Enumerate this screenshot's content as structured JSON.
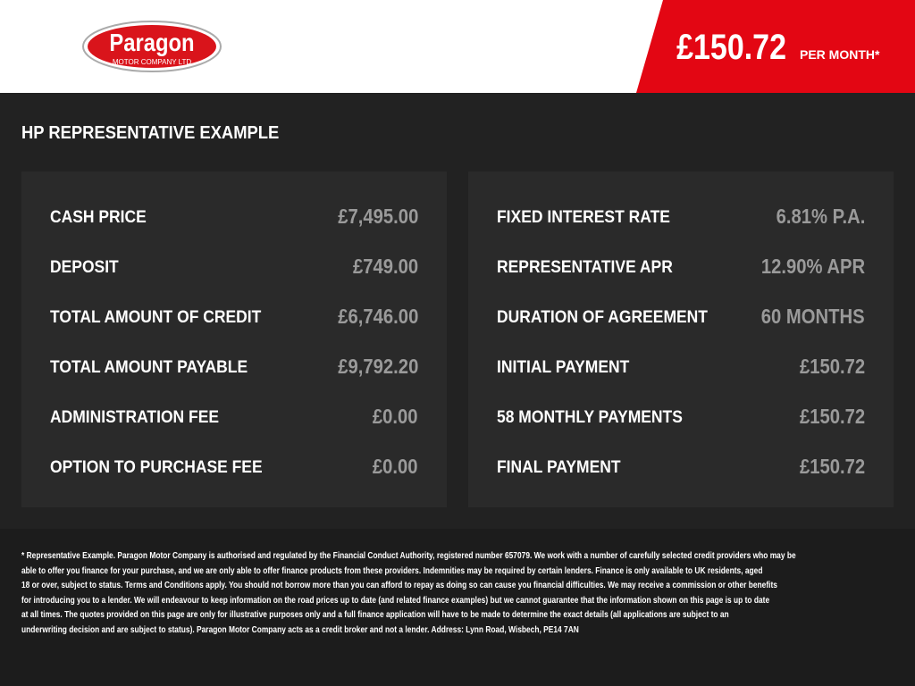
{
  "header": {
    "logo": {
      "name": "Paragon",
      "subtitle": "MOTOR COMPANY LTD"
    },
    "price": "£150.72",
    "price_suffix": "PER MONTH*"
  },
  "title": "HP REPRESENTATIVE EXAMPLE",
  "panels": [
    {
      "rows": [
        {
          "label": "CASH PRICE",
          "value": "£7,495.00"
        },
        {
          "label": "DEPOSIT",
          "value": "£749.00"
        },
        {
          "label": "TOTAL AMOUNT OF CREDIT",
          "value": "£6,746.00"
        },
        {
          "label": "TOTAL AMOUNT PAYABLE",
          "value": "£9,792.20"
        },
        {
          "label": "ADMINISTRATION FEE",
          "value": "£0.00"
        },
        {
          "label": "OPTION TO PURCHASE FEE",
          "value": "£0.00"
        }
      ]
    },
    {
      "rows": [
        {
          "label": "FIXED INTEREST RATE",
          "value": "6.81% P.A."
        },
        {
          "label": "REPRESENTATIVE APR",
          "value": "12.90% APR"
        },
        {
          "label": "DURATION OF AGREEMENT",
          "value": "60 MONTHS"
        },
        {
          "label": "INITIAL PAYMENT",
          "value": "£150.72"
        },
        {
          "label": "58 MONTHLY PAYMENTS",
          "value": "£150.72"
        },
        {
          "label": "FINAL PAYMENT",
          "value": "£150.72"
        }
      ]
    }
  ],
  "disclaimer": [
    "* Representative Example. Paragon Motor Company is authorised and regulated by the Financial Conduct Authority, registered number 657079. We work with a number of carefully selected credit providers who may be",
    "able to offer you finance for your purchase, and we are only able to offer finance products from these providers. Indemnities may be required by certain lenders. Finance is only available to UK residents, aged",
    "18 or over, subject to status. Terms and Conditions apply. You should not borrow more than you can afford to repay as doing so can cause you financial difficulties. We may receive a commission or other benefits",
    "for introducing you to a lender. We will endeavour to keep information on the road prices up to date (and related finance examples) but we cannot guarantee that the information shown on this page is up to date",
    "at all times. The quotes provided on this page are only for illustrative purposes only and a full finance application will have to be made to determine the exact details (all applications are subject to an",
    "underwriting decision and are subject to status). Paragon Motor Company acts as a credit broker and not a lender. Address: Lynn Road, Wisbech, PE14 7AN"
  ]
}
